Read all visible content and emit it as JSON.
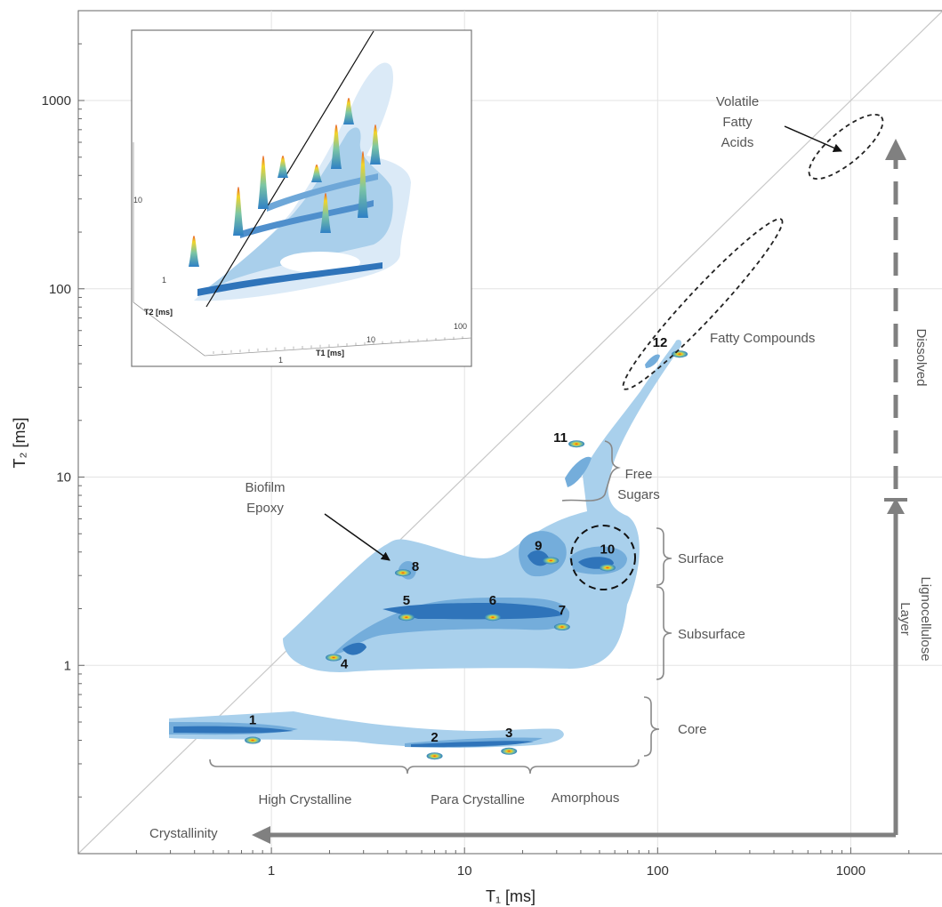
{
  "chart_data": {
    "type": "contour",
    "xlabel": "T₁ [ms]",
    "ylabel": "T₂ [ms]",
    "x_scale": "log",
    "y_scale": "log",
    "xlim": [
      0.1,
      3000
    ],
    "ylim": [
      0.1,
      3000
    ],
    "x_ticks": [
      "1",
      "10",
      "100",
      "1000"
    ],
    "y_ticks": [
      "1",
      "10",
      "100",
      "1000"
    ],
    "grid": true,
    "diagonal_line": "T1 = T2",
    "peaks": [
      {
        "label": "1",
        "t1": 0.8,
        "t2": 0.4
      },
      {
        "label": "2",
        "t1": 7,
        "t2": 0.33
      },
      {
        "label": "3",
        "t1": 17,
        "t2": 0.35
      },
      {
        "label": "4",
        "t1": 2.1,
        "t2": 1.1
      },
      {
        "label": "5",
        "t1": 5,
        "t2": 1.8
      },
      {
        "label": "6",
        "t1": 14,
        "t2": 1.8
      },
      {
        "label": "7",
        "t1": 32,
        "t2": 1.6
      },
      {
        "label": "8",
        "t1": 4.8,
        "t2": 3.1
      },
      {
        "label": "9",
        "t1": 28,
        "t2": 3.6
      },
      {
        "label": "10",
        "t1": 55,
        "t2": 3.3
      },
      {
        "label": "11",
        "t1": 38,
        "t2": 15
      },
      {
        "label": "12",
        "t1": 130,
        "t2": 45
      }
    ],
    "annotations": {
      "vfa": "Volatile Fatty Acids",
      "vfa_lines": [
        "Volatile",
        "Fatty",
        "Acids"
      ],
      "fatty": "Fatty Compounds",
      "biofilm_lines": [
        "Biofilm",
        "Epoxy"
      ],
      "free_sugars_lines": [
        "Free",
        "Sugars"
      ],
      "surface": "Surface",
      "subsurface": "Subsurface",
      "core": "Core",
      "high_crystalline": "High Crystalline",
      "para_crystalline": "Para Crystalline",
      "amorphous": "Amorphous",
      "crystallinity": "Crystallinity",
      "dissolved": "Dissolved",
      "lignocellulose_lines": [
        "Lignocellulose",
        "Layer"
      ]
    },
    "inset": {
      "type": "3d-surface",
      "xlabel": "T1 [ms]",
      "ylabel": "T2 [ms]",
      "x_ticks": [
        "1",
        "10",
        "100"
      ],
      "y_ticks": [
        "1",
        "10"
      ]
    }
  }
}
